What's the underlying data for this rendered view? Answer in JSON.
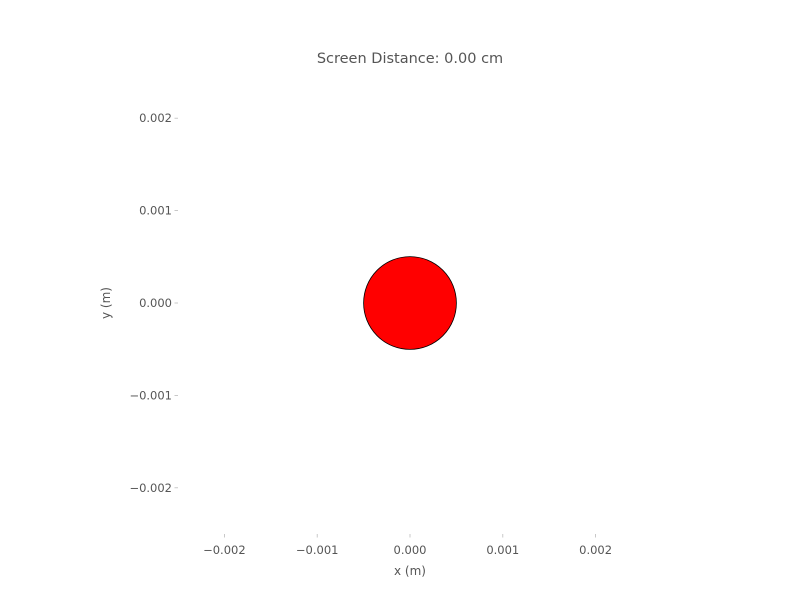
{
  "chart_data": {
    "type": "scatter",
    "title": "Screen Distance: 0.00 cm",
    "xlabel": "x (m)",
    "ylabel": "y (m)",
    "xlim": [
      -0.0025,
      0.0025
    ],
    "ylim": [
      -0.0025,
      0.0025
    ],
    "x_ticks": [
      -0.002,
      -0.001,
      0.0,
      0.001,
      0.002
    ],
    "x_tick_labels": [
      "−0.002",
      "−0.001",
      "0.000",
      "0.001",
      "0.002"
    ],
    "y_ticks": [
      -0.002,
      -0.001,
      0.0,
      0.001,
      0.002
    ],
    "y_tick_labels": [
      "−0.002",
      "−0.001",
      "0.000",
      "0.001",
      "0.002"
    ],
    "grid": false,
    "points": [
      {
        "x": 0.0,
        "y": 0.0,
        "radius": 0.0005,
        "color": "#ff0000",
        "edge_color": "#000000"
      }
    ]
  }
}
